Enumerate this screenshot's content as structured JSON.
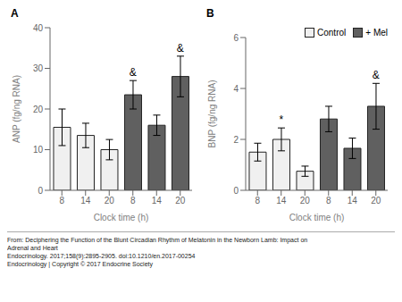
{
  "chart_data": [
    {
      "type": "bar",
      "title": "A",
      "xlabel": "Clock time (h)",
      "ylabel": "ANP (fg/ng RNA)",
      "categories": [
        "8",
        "14",
        "20",
        "8",
        "14",
        "20"
      ],
      "series": [
        {
          "name": "Control",
          "color": "#f0f0f0",
          "values": [
            15.5,
            13.5,
            10.0,
            null,
            null,
            null
          ],
          "errors": [
            4.5,
            3.0,
            2.5,
            null,
            null,
            null
          ]
        },
        {
          "name": "+ Mel",
          "color": "#606060",
          "values": [
            null,
            null,
            null,
            23.5,
            16.0,
            28.0
          ],
          "errors": [
            null,
            null,
            null,
            3.5,
            2.5,
            5.0
          ]
        }
      ],
      "ylim": [
        0,
        40
      ],
      "yticks": [
        0,
        10,
        20,
        30,
        40
      ],
      "annotations": [
        {
          "text": "&",
          "series": "+ Mel",
          "category": "8"
        },
        {
          "text": "&",
          "series": "+ Mel",
          "category": "20"
        }
      ]
    },
    {
      "type": "bar",
      "title": "B",
      "xlabel": "Clock time (h)",
      "ylabel": "BNP (fg/ng RNA)",
      "categories": [
        "8",
        "14",
        "20",
        "8",
        "14",
        "20"
      ],
      "series": [
        {
          "name": "Control",
          "color": "#f0f0f0",
          "values": [
            1.5,
            2.0,
            0.75,
            null,
            null,
            null
          ],
          "errors": [
            0.35,
            0.45,
            0.2,
            null,
            null,
            null
          ]
        },
        {
          "name": "+ Mel",
          "color": "#606060",
          "values": [
            null,
            null,
            null,
            2.8,
            1.65,
            3.3
          ],
          "errors": [
            null,
            null,
            null,
            0.5,
            0.4,
            0.9
          ]
        }
      ],
      "ylim": [
        0,
        6
      ],
      "yticks": [
        0,
        2,
        4,
        6
      ],
      "annotations": [
        {
          "text": "*",
          "series": "Control",
          "category": "14"
        },
        {
          "text": "&",
          "series": "+ Mel",
          "category": "20"
        }
      ],
      "legend": "upper right"
    }
  ],
  "footer": [
    "From: Deciphering the Function of the Blunt Circadian Rhythm of Melatonin in the Newborn Lamb: Impact on",
    "Adrenal and Heart",
    "Endocrinology. 2017;158(9):2895-2905. doi:10.1210/en.2017-00254",
    "Endocrinology | Copyright © 2017 Endocrine Society"
  ]
}
